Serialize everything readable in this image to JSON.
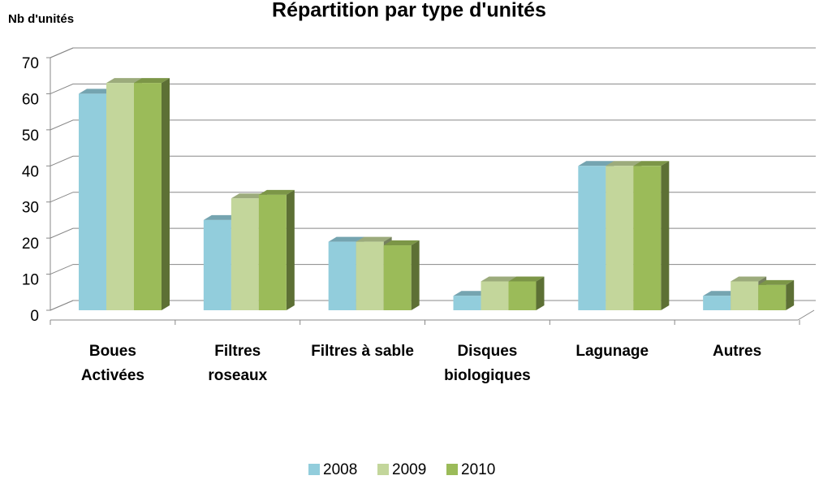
{
  "chart_data": {
    "type": "bar3d",
    "title": "Répartition par type d'unités",
    "y_label": "Nb d'unités",
    "categories": [
      "Boues Activées",
      "Filtres roseaux",
      "Filtres à sable",
      "Disques biologiques",
      "Lagunage",
      "Autres"
    ],
    "series": [
      {
        "name": "2008",
        "color": "#92cddc",
        "values": [
          60,
          25,
          19,
          4,
          40,
          4
        ]
      },
      {
        "name": "2009",
        "color": "#c3d69b",
        "values": [
          63,
          31,
          19,
          8,
          40,
          8
        ]
      },
      {
        "name": "2010",
        "color": "#9bbb59",
        "values": [
          63,
          32,
          18,
          8,
          40,
          7
        ]
      }
    ],
    "ylim": [
      0,
      70
    ],
    "yticks": [
      0,
      10,
      20,
      30,
      40,
      50,
      60,
      70
    ],
    "grid": true,
    "legend": "bottom"
  }
}
